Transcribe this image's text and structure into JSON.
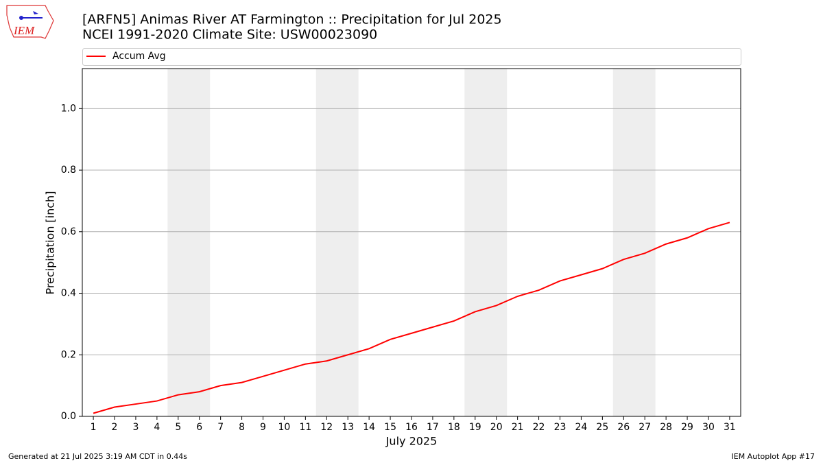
{
  "chart_data": {
    "type": "line",
    "title": "[ARFN5] Animas River  AT Farmington :: Precipitation for Jul 2025",
    "subtitle": "NCEI 1991-2020 Climate Site: USW00023090",
    "x_label": "July 2025",
    "y_label": "Precipitation [inch]",
    "x": [
      1,
      2,
      3,
      4,
      5,
      6,
      7,
      8,
      9,
      10,
      11,
      12,
      13,
      14,
      15,
      16,
      17,
      18,
      19,
      20,
      21,
      22,
      23,
      24,
      25,
      26,
      27,
      28,
      29,
      30,
      31
    ],
    "series": [
      {
        "name": "Accum Avg",
        "color": "#ff0000",
        "values": [
          0.01,
          0.03,
          0.04,
          0.05,
          0.07,
          0.08,
          0.1,
          0.11,
          0.13,
          0.15,
          0.17,
          0.18,
          0.2,
          0.22,
          0.25,
          0.27,
          0.29,
          0.31,
          0.34,
          0.36,
          0.39,
          0.41,
          0.44,
          0.46,
          0.48,
          0.51,
          0.53,
          0.56,
          0.58,
          0.61,
          0.63
        ]
      }
    ],
    "xlim": [
      0.48,
      31.52
    ],
    "xticks": [
      1,
      2,
      3,
      4,
      5,
      6,
      7,
      8,
      9,
      10,
      11,
      12,
      13,
      14,
      15,
      16,
      17,
      18,
      19,
      20,
      21,
      22,
      23,
      24,
      25,
      26,
      27,
      28,
      29,
      30,
      31
    ],
    "ylim": [
      0,
      1.13
    ],
    "yticks": [
      {
        "value": 0,
        "label": "0.0"
      },
      0.2,
      0.4,
      0.6,
      0.8,
      {
        "value": 1,
        "label": "1.0"
      }
    ],
    "grid": true,
    "shaded_spans": [
      [
        4.5,
        6.5
      ],
      [
        11.5,
        13.5
      ],
      [
        18.5,
        20.5
      ],
      [
        25.5,
        27.5
      ]
    ],
    "shade_color": "#eeeeee",
    "legend": "top"
  },
  "logo_text": "IEM",
  "footer_left": "Generated at 21 Jul 2025 3:19 AM CDT in 0.44s",
  "footer_right": "IEM Autoplot App #17"
}
